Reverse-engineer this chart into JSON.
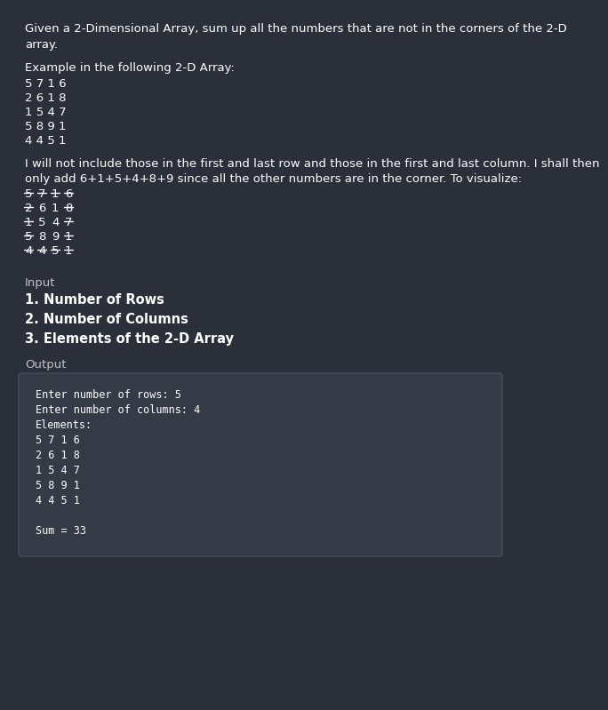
{
  "bg_color": "#2b2f3a",
  "text_color": "#ffffff",
  "title_text_line1": "Given a 2-Dimensional Array, sum up all the numbers that are not in the corners of the 2-D",
  "title_text_line2": "array.",
  "example_label": "Example in the following 2-D Array:",
  "example_array": [
    "5716",
    "2618",
    "1547",
    "5891",
    "4451"
  ],
  "explanation_line1": "I will not include those in the first and last row and those in the first and last column. I shall then",
  "explanation_line2": "only add 6+1+5+4+8+9 since all the other numbers are in the corner. To visualize:",
  "strikethrough_array_display": [
    "5716",
    "2618",
    "1547",
    "5891",
    "4451"
  ],
  "strikethrough_flags": [
    [
      true,
      true,
      true,
      true
    ],
    [
      true,
      false,
      false,
      true
    ],
    [
      true,
      false,
      false,
      true
    ],
    [
      true,
      false,
      false,
      true
    ],
    [
      true,
      true,
      true,
      true
    ]
  ],
  "input_label": "Input",
  "input_items": [
    "1. Number of Rows",
    "2. Number of Columns",
    "3. Elements of the 2-D Array"
  ],
  "output_label": "Output",
  "terminal_lines": [
    "Enter number of rows: 5",
    "Enter number of columns: 4",
    "Elements:",
    "5 7 1 6",
    "2 6 1 8",
    "1 5 4 7",
    "5 8 9 1",
    "4 4 5 1",
    "",
    "Sum = 33"
  ],
  "terminal_bg": "#353a47",
  "terminal_border": "#444c5e"
}
